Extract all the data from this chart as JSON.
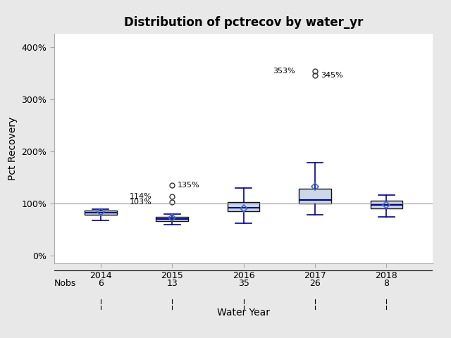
{
  "title": "Distribution of pctrecov by water_yr",
  "xlabel": "Water Year",
  "ylabel": "Pct Recovery",
  "years": [
    2014,
    2015,
    2016,
    2017,
    2018
  ],
  "nobs": [
    6,
    13,
    35,
    26,
    8
  ],
  "box_stats": {
    "2014": {
      "median": 83,
      "q1": 79,
      "q3": 87,
      "whislo": 68,
      "whishi": 90,
      "mean": 84,
      "fliers": []
    },
    "2015": {
      "median": 71,
      "q1": 67,
      "q3": 75,
      "whislo": 60,
      "whishi": 80,
      "mean": 73,
      "fliers": [
        103,
        114,
        135
      ]
    },
    "2016": {
      "median": 92,
      "q1": 85,
      "q3": 103,
      "whislo": 63,
      "whishi": 130,
      "mean": 91,
      "fliers": []
    },
    "2017": {
      "median": 107,
      "q1": 100,
      "q3": 128,
      "whislo": 78,
      "whishi": 178,
      "mean": 132,
      "fliers": [
        345,
        353
      ]
    },
    "2018": {
      "median": 97,
      "q1": 91,
      "q3": 105,
      "whislo": 74,
      "whishi": 116,
      "mean": 98,
      "fliers": []
    }
  },
  "outlier_labels": {
    "2015": {
      "103": "103%",
      "114": "114%",
      "135": "135%"
    },
    "2017": {
      "345": "345%",
      "353": "353%"
    }
  },
  "hline_y": 100,
  "ylim": [
    -15,
    425
  ],
  "yticks": [
    0,
    100,
    200,
    300,
    400
  ],
  "ytick_labels": [
    "0%",
    "100%",
    "200%",
    "300%",
    "400%"
  ],
  "box_facecolor": "#ccd8e8",
  "box_edgecolor": "#111111",
  "median_color": "#00008b",
  "whisker_color": "#00008b",
  "flier_edgecolor": "#333333",
  "mean_marker_color": "#4169c8",
  "hline_color": "#999999",
  "background_color": "#e8e8e8",
  "plot_bg_color": "#ffffff",
  "title_fontsize": 12,
  "label_fontsize": 10,
  "tick_fontsize": 9,
  "nobs_fontsize": 9
}
